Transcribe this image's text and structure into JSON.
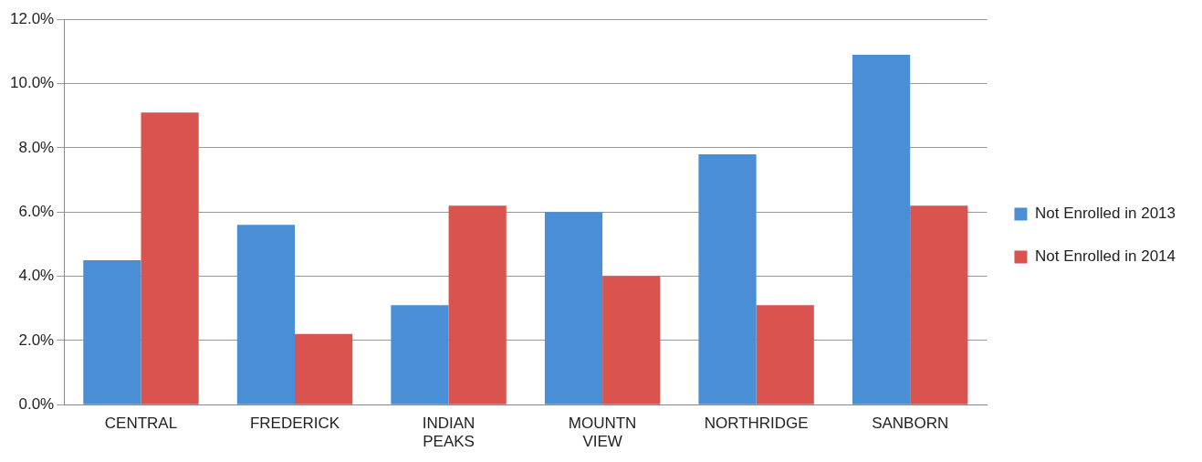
{
  "chart_data": {
    "type": "bar",
    "categories": [
      "CENTRAL",
      "FREDERICK",
      "INDIAN PEAKS",
      "MOUNTN VIEW",
      "NORTHRIDGE",
      "SANBORN"
    ],
    "series": [
      {
        "name": "Not Enrolled in 2013",
        "color": "#4a8fd6",
        "values": [
          4.5,
          5.6,
          3.1,
          6.0,
          7.8,
          10.9
        ]
      },
      {
        "name": "Not Enrolled in 2014",
        "color": "#d9534f",
        "values": [
          9.1,
          2.2,
          6.2,
          4.0,
          3.1,
          6.2
        ]
      }
    ],
    "ylim": [
      0,
      12
    ],
    "yticks": [
      {
        "value": 0,
        "label": "0.0%"
      },
      {
        "value": 2,
        "label": "2.0%"
      },
      {
        "value": 4,
        "label": "4.0%"
      },
      {
        "value": 6,
        "label": "6.0%"
      },
      {
        "value": 8,
        "label": "8.0%"
      },
      {
        "value": 10,
        "label": "10.0%"
      },
      {
        "value": 12,
        "label": "12.0%"
      }
    ],
    "grid": "y",
    "legend": "right"
  }
}
